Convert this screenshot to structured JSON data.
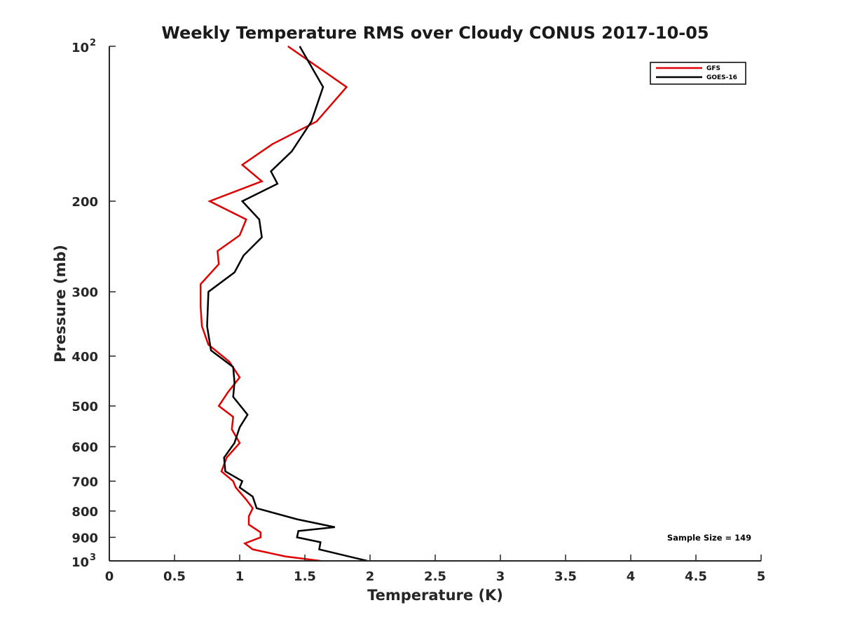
{
  "chart_data": {
    "type": "line",
    "title": "Weekly Temperature RMS over Cloudy CONUS 2017-10-05",
    "xlabel": "Temperature (K)",
    "ylabel": "Pressure (mb)",
    "xlim": [
      0,
      5
    ],
    "ylim": [
      100,
      1000
    ],
    "y_scale": "log",
    "y_reversed": true,
    "x_ticks": [
      {
        "value": 0,
        "label": "0"
      },
      {
        "value": 0.5,
        "label": "0.5"
      },
      {
        "value": 1,
        "label": "1"
      },
      {
        "value": 1.5,
        "label": "1.5"
      },
      {
        "value": 2,
        "label": "2"
      },
      {
        "value": 2.5,
        "label": "2.5"
      },
      {
        "value": 3,
        "label": "3"
      },
      {
        "value": 3.5,
        "label": "3.5"
      },
      {
        "value": 4,
        "label": "4"
      },
      {
        "value": 4.5,
        "label": "4.5"
      },
      {
        "value": 5,
        "label": "5"
      }
    ],
    "y_ticks": [
      {
        "value": 100,
        "base": "10",
        "exp": "2"
      },
      {
        "value": 200,
        "label": "200"
      },
      {
        "value": 300,
        "label": "300"
      },
      {
        "value": 400,
        "label": "400"
      },
      {
        "value": 500,
        "label": "500"
      },
      {
        "value": 600,
        "label": "600"
      },
      {
        "value": 700,
        "label": "700"
      },
      {
        "value": 800,
        "label": "800"
      },
      {
        "value": 900,
        "label": "900"
      },
      {
        "value": 1000,
        "base": "10",
        "exp": "3"
      }
    ],
    "grid": false,
    "legend_position": "top-right",
    "annotation": "Sample Size = 149",
    "series": [
      {
        "name": "GFS",
        "color": "#e00000",
        "points": [
          [
            1.37,
            100
          ],
          [
            1.82,
            120
          ],
          [
            1.59,
            140
          ],
          [
            1.25,
            155
          ],
          [
            1.02,
            170
          ],
          [
            1.17,
            183
          ],
          [
            0.77,
            200
          ],
          [
            1.05,
            217
          ],
          [
            1.0,
            233
          ],
          [
            0.83,
            250
          ],
          [
            0.84,
            265
          ],
          [
            0.7,
            290
          ],
          [
            0.7,
            320
          ],
          [
            0.71,
            350
          ],
          [
            0.76,
            380
          ],
          [
            0.92,
            410
          ],
          [
            1.0,
            440
          ],
          [
            0.91,
            470
          ],
          [
            0.84,
            500
          ],
          [
            0.95,
            525
          ],
          [
            0.94,
            555
          ],
          [
            1.0,
            590
          ],
          [
            0.9,
            630
          ],
          [
            0.86,
            670
          ],
          [
            0.95,
            700
          ],
          [
            0.97,
            720
          ],
          [
            1.05,
            760
          ],
          [
            1.1,
            790
          ],
          [
            1.07,
            820
          ],
          [
            1.07,
            850
          ],
          [
            1.16,
            880
          ],
          [
            1.16,
            900
          ],
          [
            1.04,
            925
          ],
          [
            1.1,
            950
          ],
          [
            1.35,
            980
          ],
          [
            1.62,
            1000
          ]
        ]
      },
      {
        "name": "GOES-16",
        "color": "#000000",
        "points": [
          [
            1.46,
            100
          ],
          [
            1.64,
            120
          ],
          [
            1.55,
            140
          ],
          [
            1.4,
            160
          ],
          [
            1.24,
            175
          ],
          [
            1.29,
            185
          ],
          [
            1.02,
            200
          ],
          [
            1.15,
            217
          ],
          [
            1.17,
            235
          ],
          [
            1.03,
            255
          ],
          [
            0.96,
            275
          ],
          [
            0.76,
            300
          ],
          [
            0.75,
            350
          ],
          [
            0.78,
            390
          ],
          [
            0.95,
            420
          ],
          [
            0.96,
            450
          ],
          [
            0.95,
            480
          ],
          [
            1.06,
            520
          ],
          [
            1.0,
            550
          ],
          [
            0.96,
            590
          ],
          [
            0.88,
            630
          ],
          [
            0.89,
            670
          ],
          [
            1.02,
            700
          ],
          [
            1.0,
            720
          ],
          [
            1.1,
            750
          ],
          [
            1.13,
            790
          ],
          [
            1.44,
            830
          ],
          [
            1.73,
            860
          ],
          [
            1.45,
            875
          ],
          [
            1.44,
            900
          ],
          [
            1.62,
            920
          ],
          [
            1.61,
            950
          ],
          [
            1.98,
            1000
          ]
        ]
      }
    ]
  }
}
